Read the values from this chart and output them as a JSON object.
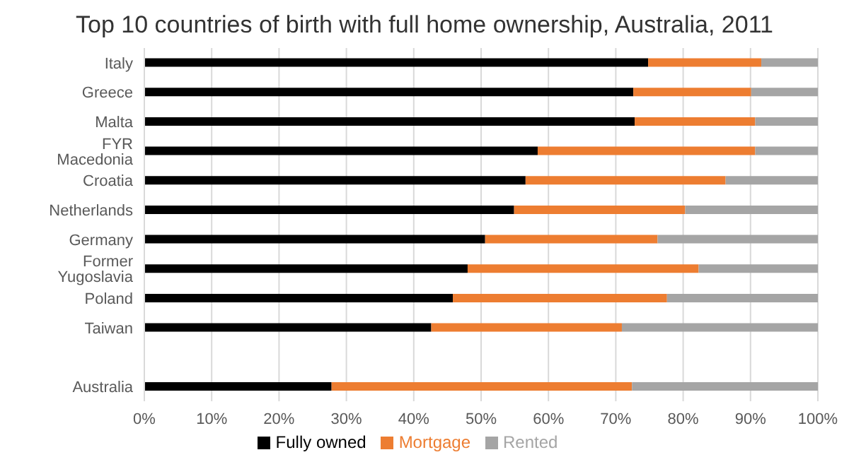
{
  "chart_data": {
    "type": "bar",
    "orientation": "horizontal",
    "stacked": true,
    "title": "Top 10 countries of birth with full home ownership, Australia, 2011",
    "categories": [
      "Italy",
      "Greece",
      "Malta",
      "FYR Macedonia",
      "Croatia",
      "Netherlands",
      "Germany",
      "Former Yugoslavia",
      "Poland",
      "Taiwan",
      null,
      "Australia"
    ],
    "series": [
      {
        "name": "Fully owned",
        "color": "#000000",
        "values": [
          74.8,
          72.6,
          72.8,
          58.4,
          56.6,
          54.9,
          50.6,
          48.0,
          45.8,
          42.6,
          null,
          27.8
        ]
      },
      {
        "name": "Mortgage",
        "color": "#ed7d31",
        "values": [
          16.8,
          17.5,
          17.9,
          32.3,
          29.7,
          25.4,
          25.6,
          34.3,
          31.8,
          28.3,
          null,
          44.6
        ]
      },
      {
        "name": "Rented",
        "color": "#a5a5a5",
        "values": [
          8.4,
          9.9,
          9.3,
          9.3,
          13.7,
          19.7,
          23.8,
          17.7,
          22.4,
          29.1,
          null,
          27.6
        ]
      }
    ],
    "xlim": [
      0,
      100
    ],
    "xticks": [
      {
        "value": 0,
        "label": "0%"
      },
      {
        "value": 10,
        "label": "10%"
      },
      {
        "value": 20,
        "label": "20%"
      },
      {
        "value": 30,
        "label": "30%"
      },
      {
        "value": 40,
        "label": "40%"
      },
      {
        "value": 50,
        "label": "50%"
      },
      {
        "value": 60,
        "label": "60%"
      },
      {
        "value": 70,
        "label": "70%"
      },
      {
        "value": 80,
        "label": "80%"
      },
      {
        "value": 90,
        "label": "90%"
      },
      {
        "value": 100,
        "label": "100%"
      }
    ],
    "grid": "x",
    "legend": "bottom"
  }
}
